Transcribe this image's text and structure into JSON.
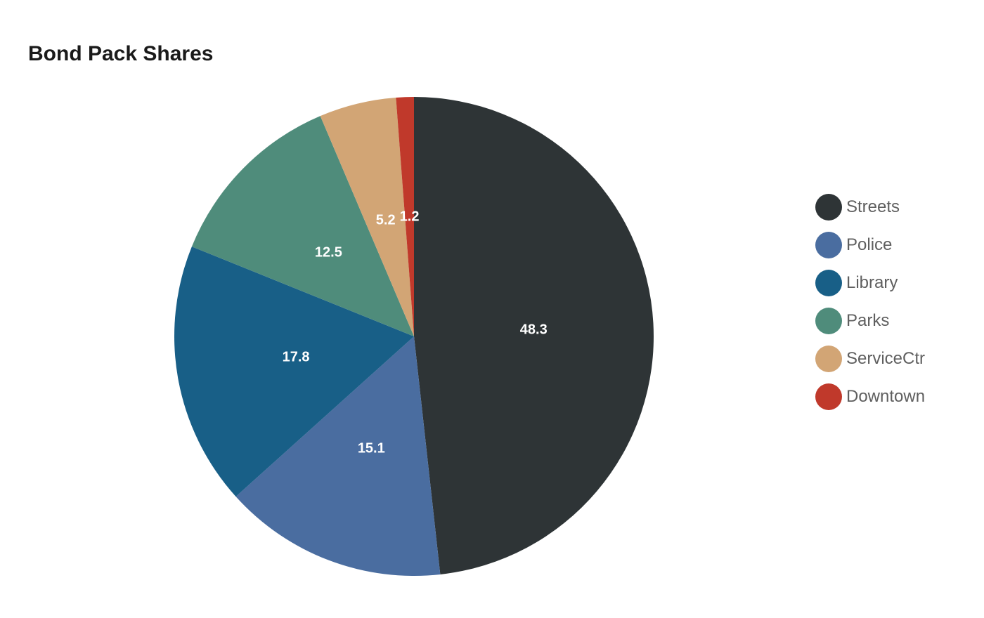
{
  "chart_data": {
    "type": "pie",
    "title": "Bond Pack Shares",
    "categories": [
      "Streets",
      "Police",
      "Library",
      "Parks",
      "ServiceCtr",
      "Downtown"
    ],
    "values": [
      48.3,
      15.1,
      17.8,
      12.5,
      5.2,
      1.2
    ],
    "data_labels": [
      "48.3",
      "15.1",
      "17.8",
      "12.5",
      "5.2",
      "1.2"
    ],
    "colors": [
      "#2e3436",
      "#4a6da0",
      "#185f87",
      "#4f8c7b",
      "#d2a575",
      "#c0392b"
    ],
    "start": "12 o'clock",
    "direction": "clockwise",
    "legend_position": "right"
  }
}
